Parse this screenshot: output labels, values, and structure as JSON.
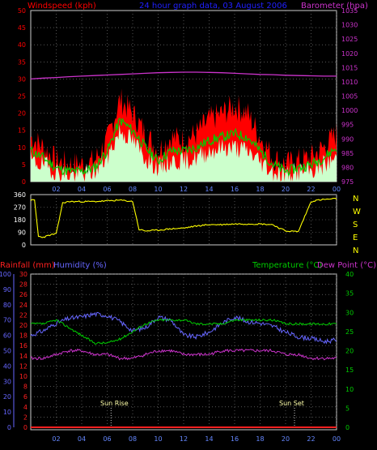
{
  "header": {
    "left": "Windspeed (kph)",
    "center": "24 hour graph data, 03 August 2006",
    "right": "Barometer (hpa)"
  },
  "bottom_header": {
    "rainfall": "Rainfall (mm)",
    "humidity": "Humidity (%)",
    "temperature": "Temperature (°C)",
    "dewpoint": "Dew Point (°C)"
  },
  "compass": [
    "N",
    "W",
    "S",
    "E",
    "N"
  ],
  "annotations": {
    "sunrise": "Sun Rise",
    "sunset": "Sun Set"
  },
  "colors": {
    "windspeed_label": "#ff0000",
    "title": "#2020ff",
    "barometer": "#cc33cc",
    "gust": "#ff0000",
    "average": "#00cc00",
    "wind_fill": "#ccffcc",
    "direction": "#ffff00",
    "rainfall": "#ff2020",
    "humidity": "#6666ff",
    "temperature": "#00cc00",
    "dewpoint": "#cc33cc",
    "grid": "#888888",
    "frame": "#cccccc"
  },
  "chart_data": [
    {
      "type": "area",
      "title": "24 hour graph data, 03 August 2006",
      "xlabel": "",
      "x_ticks": [
        "02",
        "04",
        "06",
        "08",
        "10",
        "12",
        "14",
        "16",
        "18",
        "20",
        "22",
        "00"
      ],
      "left_axis": {
        "label": "Windspeed (kph)",
        "ylim": [
          0,
          50
        ],
        "ticks": [
          0,
          5,
          10,
          15,
          20,
          25,
          30,
          35,
          40,
          45,
          50
        ]
      },
      "right_axis": {
        "label": "Barometer (hpa)",
        "ylim": [
          975,
          1035
        ],
        "ticks": [
          975,
          980,
          985,
          990,
          995,
          1000,
          1005,
          1010,
          1015,
          1020,
          1025,
          1030,
          1035
        ]
      },
      "x_hours": [
        0,
        1,
        2,
        3,
        4,
        5,
        6,
        7,
        8,
        9,
        10,
        11,
        12,
        13,
        14,
        15,
        16,
        17,
        18,
        19,
        20,
        21,
        22,
        23,
        24
      ],
      "series": [
        {
          "name": "Windspeed (kph)",
          "kind": "gust",
          "values": [
            13,
            10,
            6,
            5,
            5,
            6,
            12,
            24,
            20,
            14,
            9,
            13,
            12,
            14,
            18,
            20,
            22,
            20,
            13,
            7,
            5,
            6,
            7,
            10,
            14
          ]
        },
        {
          "name": "Windspeed (kph)",
          "kind": "average",
          "values": [
            9,
            7,
            4,
            3,
            3,
            4,
            9,
            18,
            15,
            10,
            6,
            9,
            9,
            10,
            12,
            13,
            14,
            13,
            9,
            5,
            3,
            4,
            5,
            7,
            10
          ]
        },
        {
          "name": "Windspeed (kph)",
          "kind": "fill",
          "values": [
            6,
            5,
            3,
            2,
            2,
            3,
            7,
            15,
            12,
            7,
            4,
            6,
            6,
            7,
            9,
            10,
            10,
            9,
            6,
            3,
            2,
            3,
            3,
            5,
            7
          ]
        },
        {
          "name": "Barometer (hpa)",
          "kind": "barometer",
          "values": [
            1011,
            1011.3,
            1011.5,
            1011.8,
            1012,
            1012.2,
            1012.4,
            1012.6,
            1012.8,
            1013,
            1013.2,
            1013.3,
            1013.4,
            1013.4,
            1013.3,
            1013.2,
            1013,
            1012.8,
            1012.6,
            1012.5,
            1012.3,
            1012.2,
            1012.1,
            1012,
            1012
          ]
        }
      ]
    },
    {
      "type": "line",
      "title": "",
      "xlabel": "",
      "left_axis": {
        "ylim": [
          0,
          360
        ],
        "ticks": [
          0,
          90,
          180,
          270,
          360
        ]
      },
      "right_labels": [
        "N",
        "W",
        "S",
        "E",
        "N"
      ],
      "x_hours": [
        0,
        0.3,
        0.6,
        1,
        1.5,
        2,
        2.5,
        3,
        4,
        5,
        6,
        7,
        8,
        8.5,
        9,
        10,
        11,
        12,
        13,
        14,
        15,
        16,
        17,
        18,
        19,
        19.5,
        20,
        21,
        22,
        22.5,
        23,
        24
      ],
      "series": [
        {
          "name": "Wind Direction",
          "values": [
            320,
            320,
            60,
            55,
            70,
            80,
            300,
            310,
            310,
            310,
            315,
            320,
            310,
            110,
            100,
            105,
            115,
            120,
            135,
            145,
            145,
            150,
            150,
            150,
            145,
            120,
            100,
            95,
            310,
            320,
            325,
            330
          ]
        }
      ]
    },
    {
      "type": "line",
      "title": "",
      "xlabel": "",
      "humidity_axis": {
        "label": "Humidity (%)",
        "ylim": [
          0,
          100
        ],
        "ticks": [
          0,
          10,
          20,
          30,
          40,
          50,
          60,
          70,
          80,
          90,
          100
        ]
      },
      "rainfall_axis": {
        "label": "Rainfall (mm)",
        "ylim": [
          0,
          30
        ],
        "ticks": [
          0,
          2,
          4,
          6,
          8,
          10,
          12,
          14,
          16,
          18,
          20,
          22,
          24,
          26,
          28,
          30
        ]
      },
      "temp_axis": {
        "label": "Temperature (°C)",
        "ylim": [
          0,
          40
        ],
        "ticks": [
          0,
          5,
          10,
          15,
          20,
          25,
          30,
          35,
          40
        ]
      },
      "x_hours": [
        0,
        1,
        2,
        3,
        4,
        5,
        6,
        7,
        8,
        9,
        10,
        11,
        12,
        13,
        14,
        15,
        16,
        17,
        18,
        19,
        20,
        21,
        22,
        23,
        24
      ],
      "series": [
        {
          "name": "Humidity (%)",
          "values": [
            60,
            63,
            68,
            71,
            72,
            74,
            73,
            69,
            63,
            65,
            72,
            70,
            60,
            59,
            62,
            68,
            72,
            69,
            68,
            66,
            62,
            59,
            58,
            56,
            57
          ]
        },
        {
          "name": "Temperature (°C)",
          "values": [
            27,
            27,
            28,
            26,
            24,
            22,
            22,
            23,
            25,
            27,
            28,
            28,
            28,
            27,
            27,
            27,
            28,
            28,
            28,
            28,
            27,
            27,
            27,
            27,
            27
          ]
        },
        {
          "name": "Dew Point (°C)",
          "values": [
            18,
            18,
            19,
            20,
            20,
            19,
            19,
            18,
            18,
            19,
            20,
            20,
            19,
            19,
            19,
            20,
            20,
            20,
            20,
            20,
            19,
            19,
            18,
            18,
            18
          ]
        },
        {
          "name": "Rainfall (mm)",
          "values": [
            0,
            0,
            0,
            0,
            0,
            0,
            0,
            0,
            0,
            0,
            0,
            0,
            0,
            0,
            0,
            0,
            0,
            0,
            0,
            0,
            0,
            0,
            0,
            0,
            0
          ]
        }
      ],
      "events": [
        {
          "label": "Sun Rise",
          "hour": 6.3
        },
        {
          "label": "Sun Set",
          "hour": 20.7
        }
      ]
    }
  ]
}
